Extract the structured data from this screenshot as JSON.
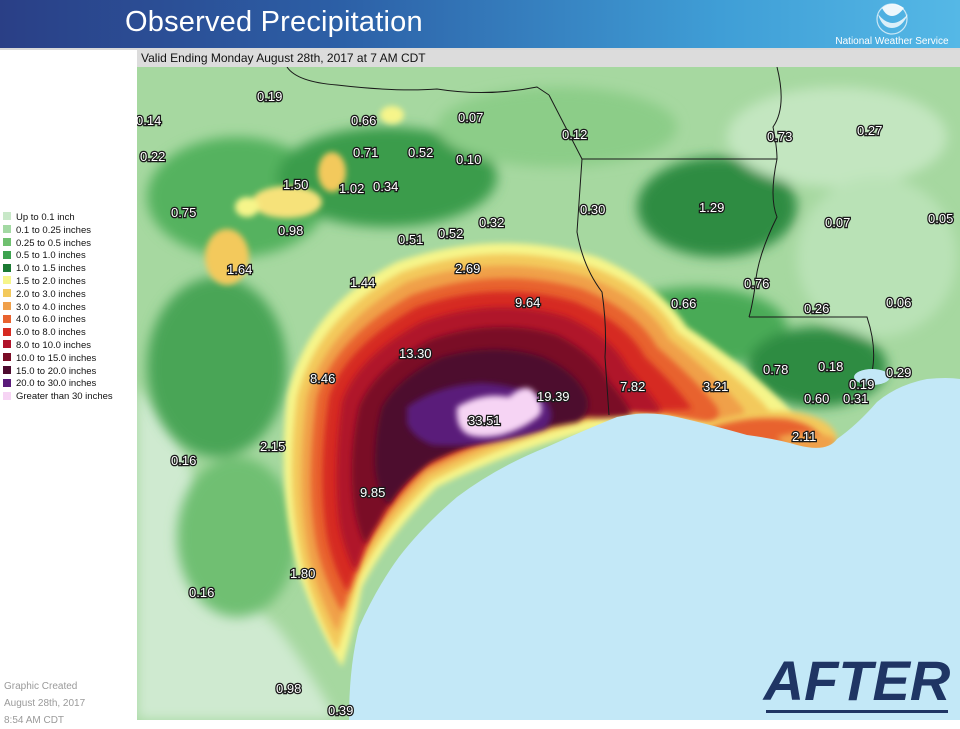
{
  "header": {
    "title": "Observed Precipitation",
    "agency": "National Weather Service"
  },
  "subtitle": "Valid Ending Monday August 28th, 2017 at 7 AM CDT",
  "legend": [
    {
      "label": "Up to 0.1 inch",
      "color": "#c8e8c8"
    },
    {
      "label": "0.1 to 0.25 inches",
      "color": "#a3d9a3"
    },
    {
      "label": "0.25 to 0.5 inches",
      "color": "#6fc06f"
    },
    {
      "label": "0.5 to 1.0 inches",
      "color": "#3da34f"
    },
    {
      "label": "1.0 to 1.5 inches",
      "color": "#1b7a33"
    },
    {
      "label": "1.5 to 2.0 inches",
      "color": "#f6f58a"
    },
    {
      "label": "2.0 to 3.0 inches",
      "color": "#f3c95b"
    },
    {
      "label": "3.0 to 4.0 inches",
      "color": "#f0a04a"
    },
    {
      "label": "4.0 to 6.0 inches",
      "color": "#e8622f"
    },
    {
      "label": "6.0 to 8.0 inches",
      "color": "#d62a21"
    },
    {
      "label": "8.0 to 10.0 inches",
      "color": "#b0122a"
    },
    {
      "label": "10.0 to 15.0 inches",
      "color": "#7a0c26"
    },
    {
      "label": "15.0 to 20.0 inches",
      "color": "#4d0a2e"
    },
    {
      "label": "20.0 to 30.0 inches",
      "color": "#5a1a7a"
    },
    {
      "label": "Greater than 30 inches",
      "color": "#f6d4f4"
    }
  ],
  "created": {
    "line1": "Graphic Created",
    "line2": "August 28th, 2017",
    "line3": "8:54 AM CDT"
  },
  "banner": "AFTER",
  "map_labels": [
    "0.19",
    "0.14",
    "0.22",
    "0.66",
    "0.07",
    "0.71",
    "0.52",
    "0.10",
    "0.12",
    "0.73",
    "0.27",
    "1.50",
    "1.02",
    "0.34",
    "0.75",
    "0.98",
    "0.30",
    "1.29",
    "0.07",
    "0.05",
    "0.51",
    "0.52",
    "0.32",
    "1.64",
    "2.69",
    "1.44",
    "0.76",
    "9.64",
    "0.66",
    "0.26",
    "0.06",
    "13.30",
    "8.46",
    "0.78",
    "0.18",
    "0.19",
    "0.29",
    "7.82",
    "3.21",
    "0.60",
    "0.31",
    "19.39",
    "33.51",
    "2.11",
    "2.15",
    "0.16",
    "9.85",
    "1.80",
    "0.16",
    "0.98",
    "0.39"
  ]
}
